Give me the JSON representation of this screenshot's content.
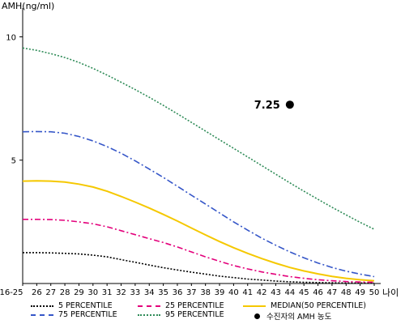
{
  "chart_data": {
    "type": "line",
    "ylabel": "AMH(ng/ml)",
    "xlabel": "나이",
    "ylim": [
      0,
      11
    ],
    "yticks": [
      5,
      10
    ],
    "categories": [
      "16-25",
      "26",
      "27",
      "28",
      "29",
      "30",
      "31",
      "32",
      "33",
      "34",
      "35",
      "36",
      "37",
      "38",
      "39",
      "40",
      "41",
      "42",
      "43",
      "44",
      "45",
      "46",
      "47",
      "48",
      "49",
      "50"
    ],
    "series": [
      {
        "name": "5 PERCENTILE",
        "color": "#000000",
        "dash": "2,2",
        "values": [
          1.25,
          1.25,
          1.24,
          1.22,
          1.2,
          1.15,
          1.08,
          0.97,
          0.86,
          0.75,
          0.64,
          0.55,
          0.46,
          0.38,
          0.3,
          0.24,
          0.18,
          0.14,
          0.1,
          0.07,
          0.05,
          0.04,
          0.03,
          0.02,
          0.02,
          0.02
        ]
      },
      {
        "name": "25 PERCENTILE",
        "color": "#e3007b",
        "dash": "7,3,2,3",
        "values": [
          2.6,
          2.6,
          2.59,
          2.56,
          2.5,
          2.42,
          2.3,
          2.14,
          1.98,
          1.82,
          1.66,
          1.48,
          1.28,
          1.08,
          0.9,
          0.73,
          0.59,
          0.47,
          0.37,
          0.28,
          0.21,
          0.15,
          0.11,
          0.08,
          0.06,
          0.05
        ]
      },
      {
        "name": "MEDIAN(50 PERCENTILE)",
        "color": "#f5c800",
        "dash": "",
        "values": [
          4.15,
          4.16,
          4.15,
          4.11,
          4.03,
          3.91,
          3.74,
          3.53,
          3.3,
          3.06,
          2.8,
          2.53,
          2.25,
          1.97,
          1.7,
          1.45,
          1.22,
          1.01,
          0.82,
          0.65,
          0.51,
          0.39,
          0.29,
          0.21,
          0.15,
          0.11
        ]
      },
      {
        "name": "75 PERCENTILE",
        "color": "#3556c8",
        "dash": "8,3,2,3",
        "values": [
          6.15,
          6.16,
          6.15,
          6.09,
          5.96,
          5.78,
          5.55,
          5.28,
          4.97,
          4.64,
          4.3,
          3.94,
          3.58,
          3.22,
          2.86,
          2.5,
          2.16,
          1.84,
          1.55,
          1.28,
          1.04,
          0.83,
          0.65,
          0.5,
          0.38,
          0.28
        ]
      },
      {
        "name": "95 PERCENTILE",
        "color": "#2e8b57",
        "dash": "2,2",
        "values": [
          9.55,
          9.45,
          9.32,
          9.16,
          8.96,
          8.72,
          8.45,
          8.16,
          7.86,
          7.55,
          7.22,
          6.88,
          6.53,
          6.18,
          5.83,
          5.48,
          5.13,
          4.78,
          4.43,
          4.08,
          3.74,
          3.41,
          3.09,
          2.78,
          2.48,
          2.2
        ]
      }
    ],
    "marker": {
      "label": "7.25",
      "category": "44",
      "value": 7.25,
      "legend": "수진자의 AMH 농도"
    },
    "grid": false,
    "legend_position": "bottom"
  }
}
